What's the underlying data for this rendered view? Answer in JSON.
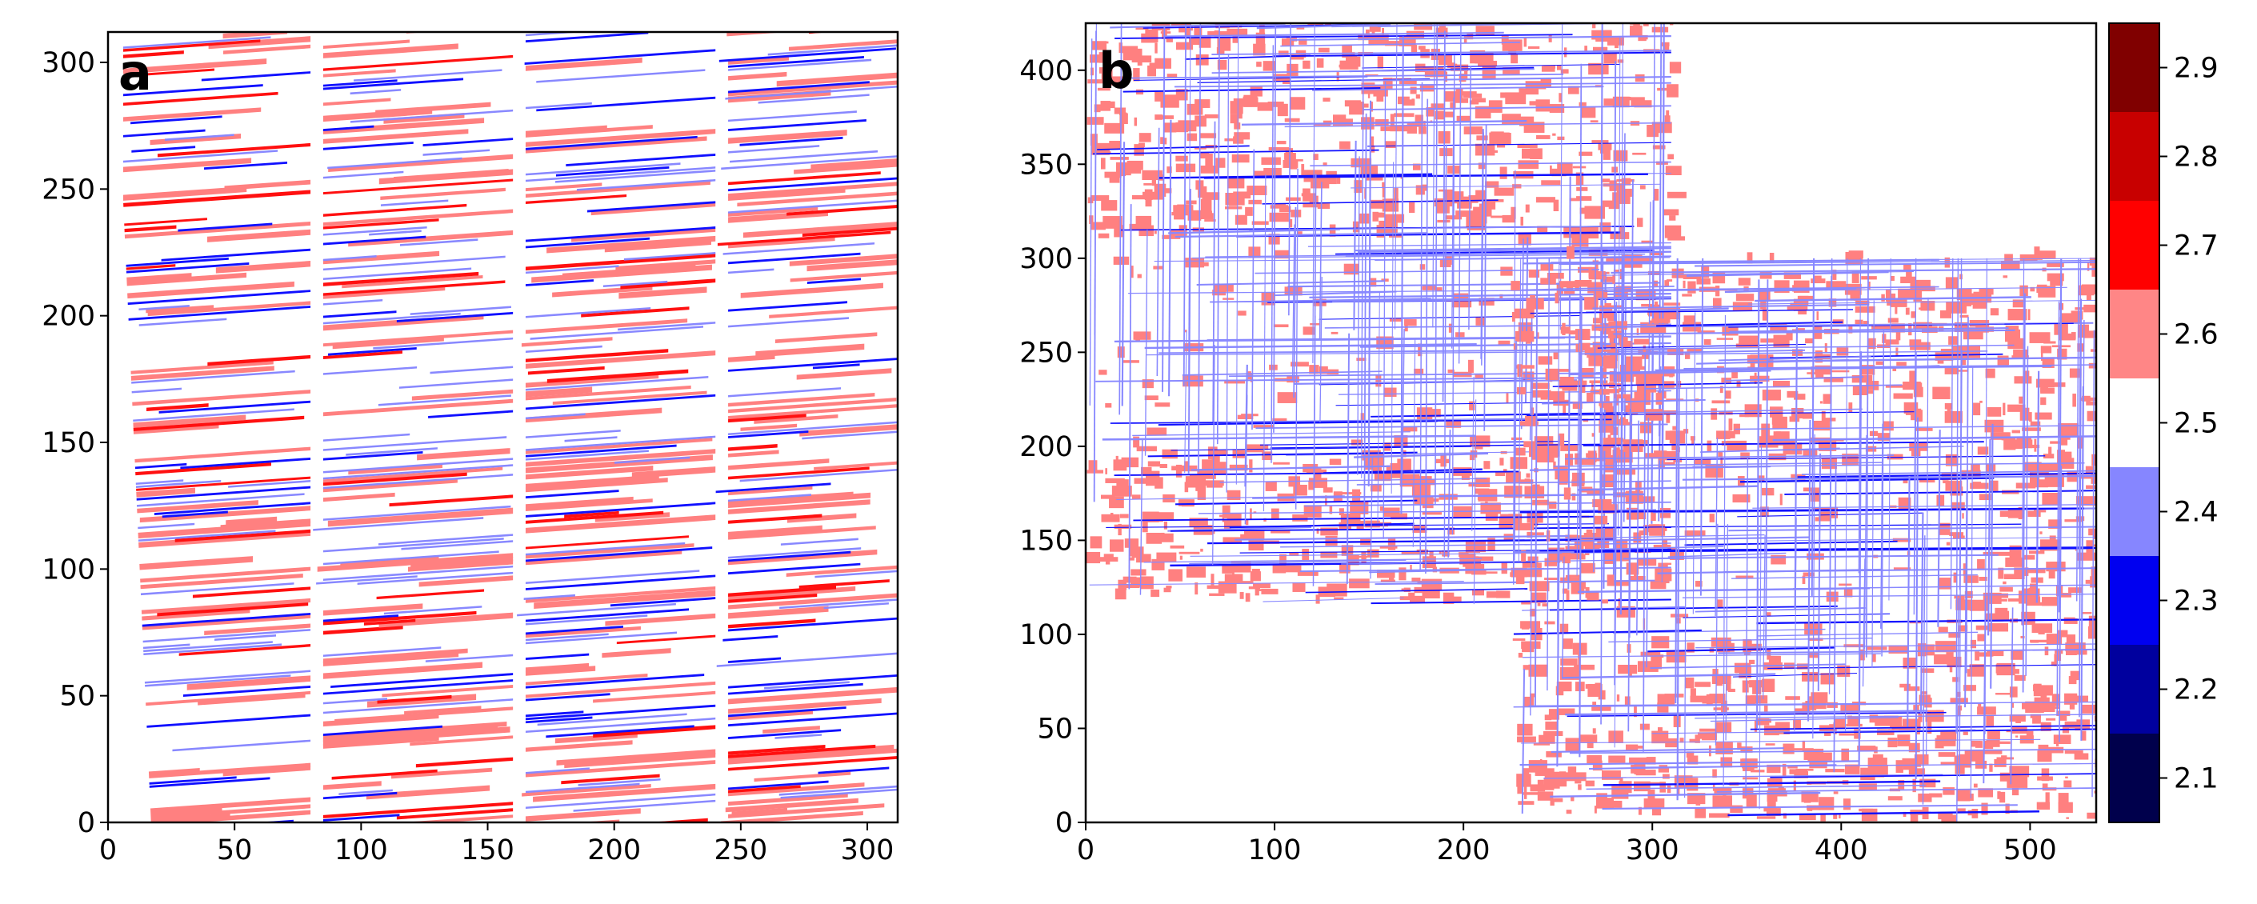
{
  "chart_data": [
    {
      "type": "heatmap",
      "panel_label": "a",
      "title": "",
      "xlabel": "",
      "ylabel": "",
      "xlim": [
        0,
        312
      ],
      "ylim": [
        0,
        312
      ],
      "x_ticks": [
        "0",
        "50",
        "100",
        "150",
        "200",
        "250",
        "300"
      ],
      "y_ticks": [
        "0",
        "50",
        "100",
        "150",
        "200",
        "250",
        "300"
      ],
      "grid": false,
      "description_values": {
        "blocks_x_boundaries": [
          0,
          80,
          160,
          240,
          312
        ],
        "pattern": "slanted horizontal streaks of values above 2.5 (red) and below 2.5 (blue)"
      }
    },
    {
      "type": "heatmap",
      "panel_label": "b",
      "title": "",
      "xlabel": "",
      "ylabel": "",
      "xlim": [
        0,
        535
      ],
      "ylim": [
        0,
        425
      ],
      "x_ticks": [
        "0",
        "100",
        "200",
        "300",
        "400",
        "500"
      ],
      "y_ticks": [
        "0",
        "50",
        "100",
        "150",
        "200",
        "250",
        "300",
        "350",
        "400"
      ],
      "grid": false,
      "description_values": {
        "block_regions": [
          {
            "x": [
              0,
              310
            ],
            "y": [
              115,
              425
            ]
          },
          {
            "x": [
              225,
              535
            ],
            "y": [
              0,
              300
            ]
          }
        ]
      }
    }
  ],
  "colorbar": {
    "tick_labels": [
      "2.1",
      "2.2",
      "2.3",
      "2.4",
      "2.5",
      "2.6",
      "2.7",
      "2.8",
      "2.9"
    ],
    "levels": [
      2.05,
      2.15,
      2.25,
      2.35,
      2.45,
      2.55,
      2.65,
      2.75,
      2.85,
      2.95
    ],
    "colors": [
      "#00004c",
      "#00009e",
      "#0000f0",
      "#8686ff",
      "#ffffff",
      "#ff8686",
      "#ff0000",
      "#c80000",
      "#800000"
    ]
  },
  "palette": {
    "light_red": "#ff8080",
    "red": "#ff1010",
    "light_blue": "#8888ff",
    "blue": "#1010ff",
    "dark_blue": "#0000b0"
  }
}
